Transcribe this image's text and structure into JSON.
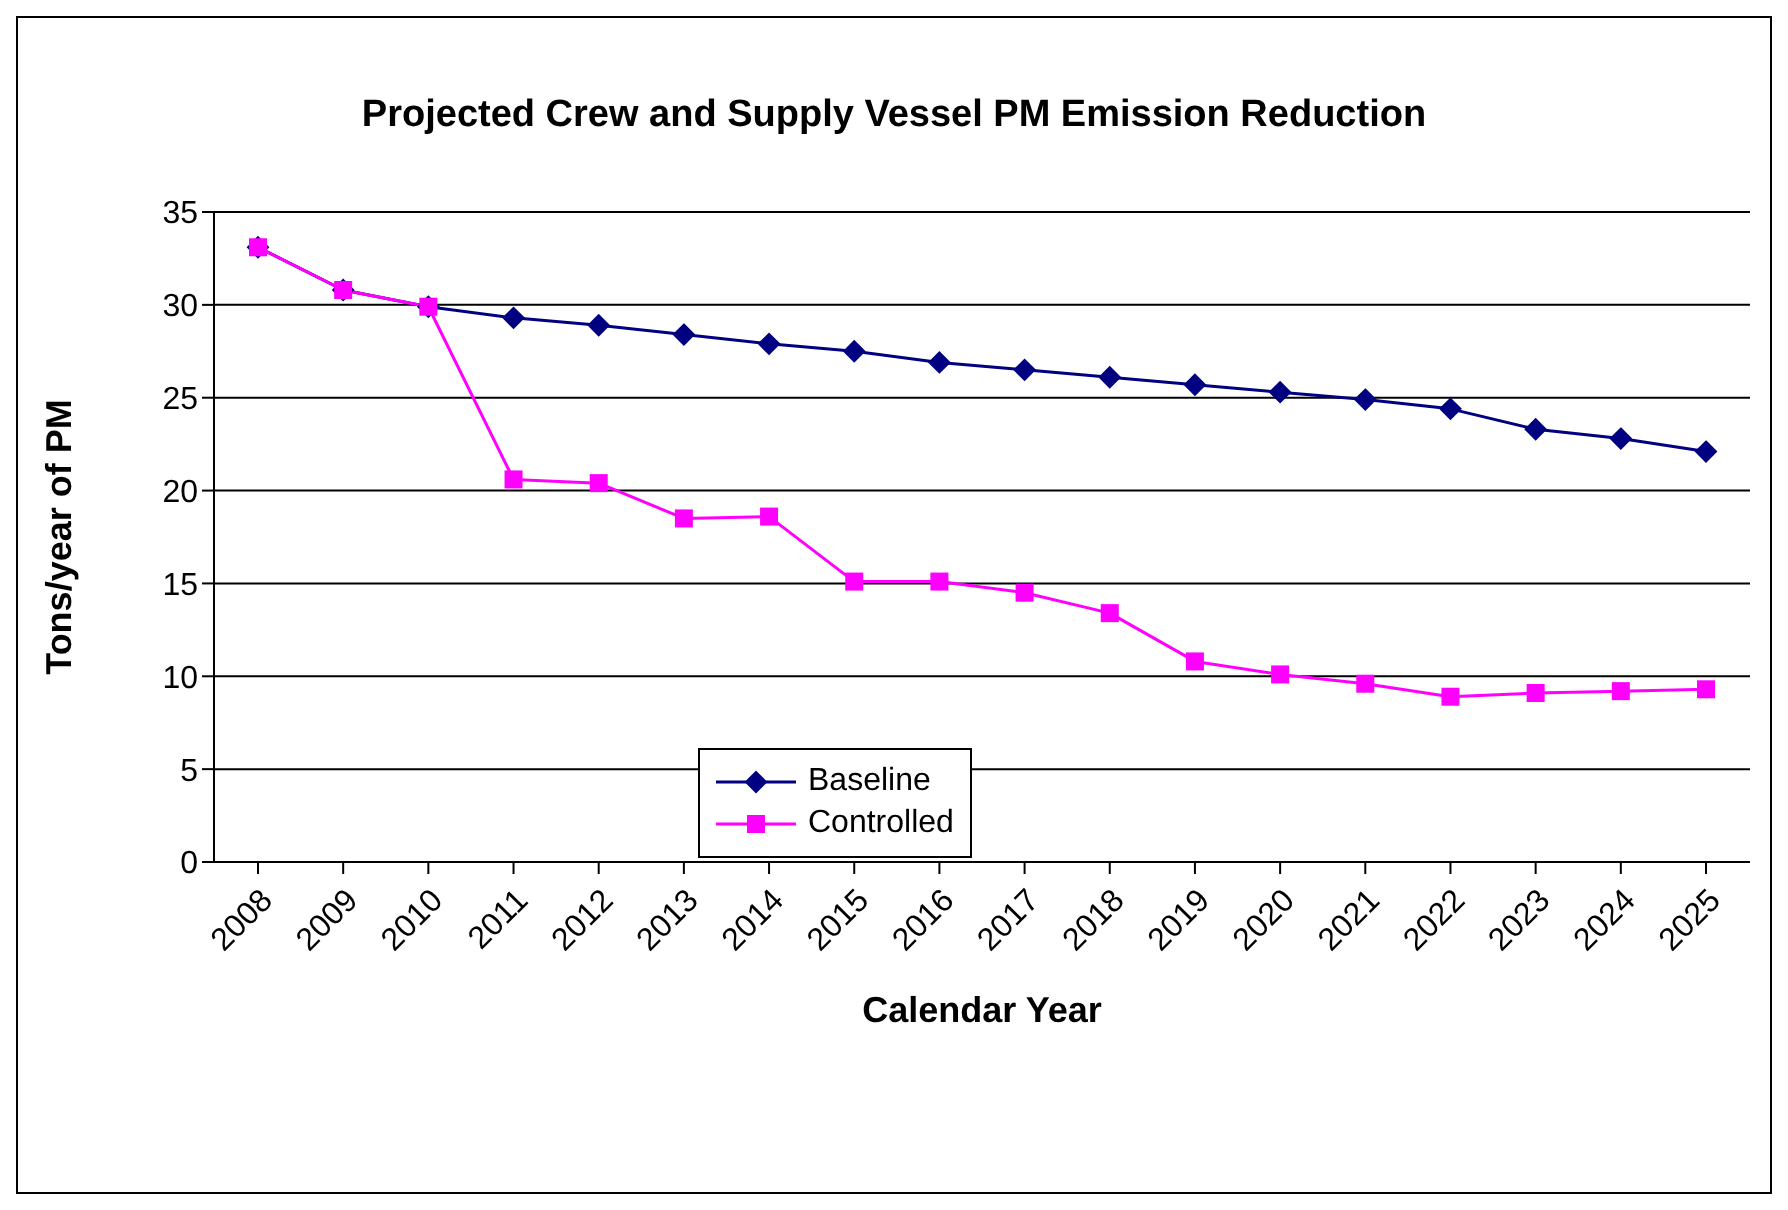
{
  "chart_data": {
    "type": "line",
    "title": "Projected Crew and Supply Vessel PM Emission Reduction",
    "xlabel": "Calendar Year",
    "ylabel": "Tons/year of PM",
    "categories": [
      "2008",
      "2009",
      "2010",
      "2011",
      "2012",
      "2013",
      "2014",
      "2015",
      "2016",
      "2017",
      "2018",
      "2019",
      "2020",
      "2021",
      "2022",
      "2023",
      "2024",
      "2025"
    ],
    "series": [
      {
        "name": "Baseline",
        "color": "#000080",
        "marker": "diamond",
        "values": [
          33.1,
          30.8,
          29.9,
          29.3,
          28.9,
          28.4,
          27.9,
          27.5,
          26.9,
          26.5,
          26.1,
          25.7,
          25.3,
          24.9,
          24.4,
          23.3,
          22.8,
          22.1
        ]
      },
      {
        "name": "Controlled",
        "color": "#ff00ff",
        "marker": "square",
        "values": [
          33.1,
          30.8,
          29.9,
          20.6,
          20.4,
          18.5,
          18.6,
          15.1,
          15.1,
          14.5,
          13.4,
          10.8,
          10.1,
          9.6,
          8.9,
          9.1,
          9.2,
          9.3
        ]
      }
    ],
    "ylim": [
      0,
      35
    ],
    "yticks": [
      0,
      5,
      10,
      15,
      20,
      25,
      30,
      35
    ],
    "grid": "y",
    "legend": "bottom center"
  }
}
